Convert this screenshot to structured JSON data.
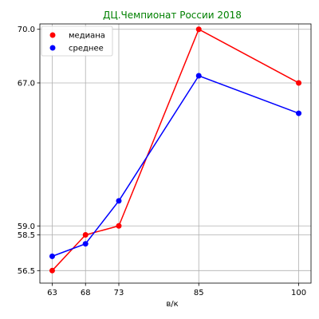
{
  "chart_data": {
    "type": "line",
    "title": "ДЦ.Чемпионат России 2018",
    "title_color": "#008000",
    "xlabel": "в/к",
    "ylabel": "",
    "x": [
      63,
      68,
      73,
      85,
      100
    ],
    "x_ticks": [
      "63",
      "68",
      "73",
      "85",
      "100"
    ],
    "xlim": [
      61.15,
      101.85
    ],
    "y_ticks": [
      "56.5",
      "58.5",
      "59.0",
      "67.0",
      "70.0"
    ],
    "y_tick_values": [
      56.5,
      58.5,
      59.0,
      67.0,
      70.0
    ],
    "ylim": [
      55.8,
      70.3
    ],
    "grid": true,
    "legend_position": "top-left",
    "series": [
      {
        "name": "медиана",
        "color": "#ff0000",
        "values": [
          56.5,
          58.5,
          59.0,
          70.0,
          67.0
        ]
      },
      {
        "name": "среднее",
        "color": "#0000ff",
        "values": [
          57.3,
          58.0,
          60.4,
          67.4,
          65.3
        ]
      }
    ]
  }
}
